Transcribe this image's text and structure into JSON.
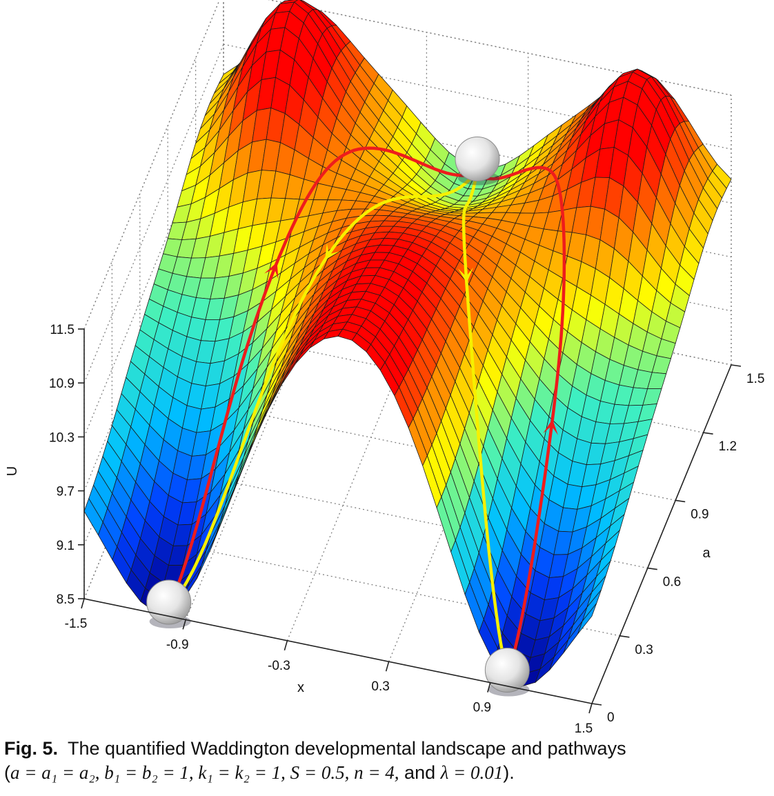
{
  "chart_data": {
    "type": "surface",
    "title": "",
    "zlabel": "U",
    "xlabel": "x",
    "ylabel": "a",
    "z_ticks": [
      "11.5",
      "10.9",
      "10.3",
      "9.7",
      "9.1",
      "8.5"
    ],
    "x_ticks": [
      "-1.5",
      "-0.9",
      "-0.3",
      "0.3",
      "0.9",
      "1.5"
    ],
    "a_ticks": [
      "0",
      "0.3",
      "0.6",
      "0.9",
      "1.2",
      "1.5"
    ],
    "xlim": [
      -1.5,
      1.5
    ],
    "alim": [
      0,
      1.5
    ],
    "zlim": [
      8.5,
      11.5
    ],
    "grid": true,
    "colormap": [
      "#00008f",
      "#0040ff",
      "#00c0ff",
      "#40f0c0",
      "#ffff00",
      "#ff8000",
      "#ff0000"
    ],
    "attractors": [
      {
        "x": -1.0,
        "a": 0.0
      },
      {
        "x": 1.0,
        "a": 0.0
      },
      {
        "x": 0.0,
        "a": 1.5
      }
    ],
    "pathways": [
      {
        "color": "#ee1c1c",
        "from": "left basin",
        "to": "central basin"
      },
      {
        "color": "#ee1c1c",
        "from": "right basin",
        "to": "central basin"
      },
      {
        "color": "#f6f000",
        "from": "central basin",
        "to": "left basin"
      },
      {
        "color": "#f6f000",
        "from": "central basin",
        "to": "right basin"
      }
    ]
  },
  "caption": {
    "label": "Fig. 5.",
    "line1": "The quantified Waddington developmental landscape and pathways",
    "line2_pre": "(",
    "line2_math": "a = a₁ = a₂, b₁ = b₂ = 1, k₁ = k₂ = 1, S = 0.5, n = 4,",
    "line2_and": " and ",
    "line2_lambda": "λ = 0.01",
    "line2_post": ")."
  }
}
